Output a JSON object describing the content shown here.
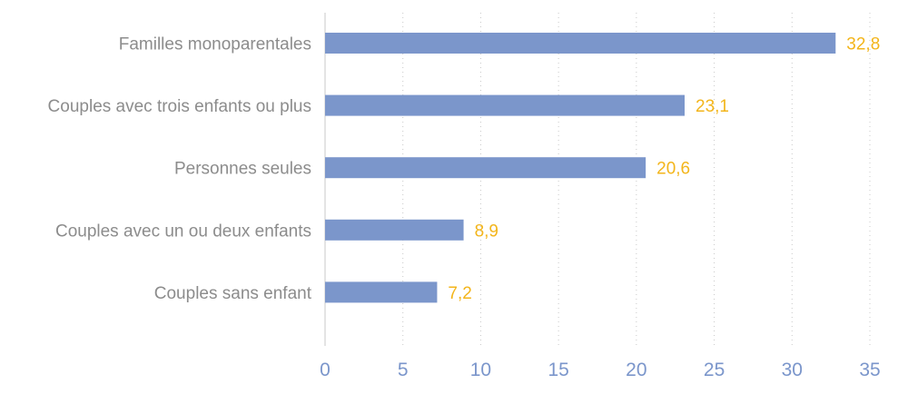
{
  "chart_data": {
    "type": "bar",
    "orientation": "horizontal",
    "categories": [
      "Familles monoparentales",
      "Couples avec trois enfants ou plus",
      "Personnes seules",
      "Couples avec un ou deux enfants",
      "Couples sans enfant"
    ],
    "values": [
      32.8,
      23.1,
      20.6,
      8.9,
      7.2
    ],
    "value_labels": [
      "32,8",
      "23,1",
      "20,6",
      "8,9",
      "7,2"
    ],
    "xlim": [
      0,
      35
    ],
    "xticks": [
      0,
      5,
      10,
      15,
      20,
      25,
      30,
      35
    ],
    "xtick_labels": [
      "0",
      "5",
      "10",
      "15",
      "20",
      "25",
      "30",
      "35"
    ],
    "grid": "vertical dotted",
    "legend": "none",
    "title": "",
    "xlabel": "",
    "ylabel": ""
  },
  "colors": {
    "bar": "#7b96cb",
    "data_label": "#f3b51b",
    "category_label": "#8c8c8c",
    "tick_label": "#7b96cb",
    "grid": "#c8c8c8"
  }
}
